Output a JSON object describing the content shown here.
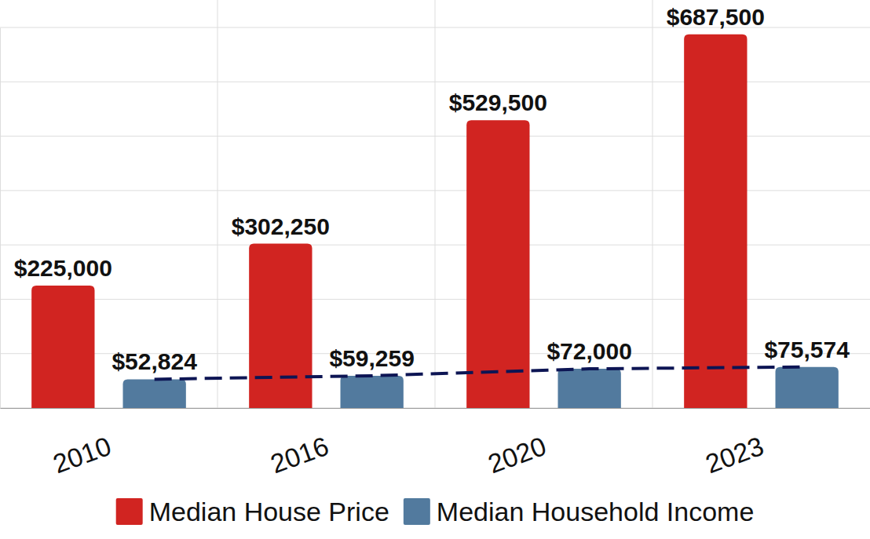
{
  "chart_data": {
    "type": "bar",
    "categories": [
      "2010",
      "2016",
      "2020",
      "2023"
    ],
    "series": [
      {
        "name": "Median House Price",
        "color": "#d12421",
        "values": [
          225000,
          302250,
          529500,
          687500
        ],
        "value_labels": [
          "$225,000",
          "$302,250",
          "$529,500",
          "$687,500"
        ]
      },
      {
        "name": "Median Household Income",
        "color": "#527a9e",
        "values": [
          52824,
          59259,
          72000,
          75574
        ],
        "value_labels": [
          "$52,824",
          "$59,259",
          "$72,000",
          "$75,574"
        ],
        "line_style": "dashed"
      }
    ],
    "ylim": [
      0,
      700000
    ],
    "yticks": [
      0,
      100000,
      200000,
      300000,
      400000,
      500000,
      600000,
      700000
    ],
    "grid": true,
    "data_labels": true,
    "tick_labels": "x",
    "legend": "bottom"
  }
}
